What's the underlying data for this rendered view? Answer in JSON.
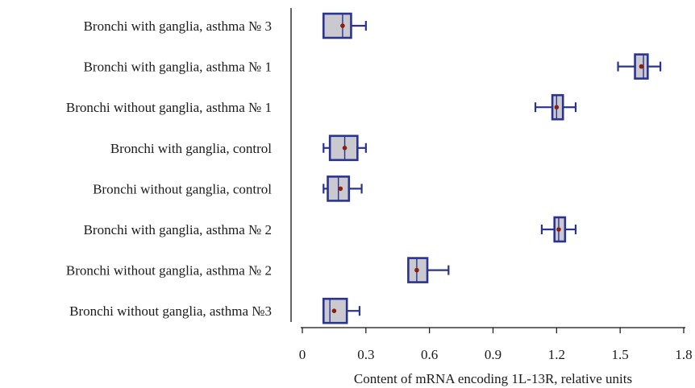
{
  "chart_data": {
    "type": "boxplot",
    "orientation": "horizontal",
    "title": "",
    "xlabel": "Content of mRNA encoding 1L-13R, relative units",
    "ylabel": "",
    "xlim": [
      0,
      1.8
    ],
    "xticks": [
      "0",
      "0.3",
      "0.6",
      "0.9",
      "1.2",
      "1.5",
      "1.8"
    ],
    "grid": false,
    "categories": [
      "Bronchi with ganglia, asthma № 3",
      "Bronchi with ganglia, asthma № 1",
      "Bronchi without ganglia, asthma № 1",
      "Bronchi with ganglia, control",
      "Bronchi without ganglia, control",
      "Bronchi with ganglia, asthma № 2",
      "Bronchi without ganglia, asthma № 2",
      "Bronchi without ganglia, asthma №3"
    ],
    "boxes": [
      {
        "min": 0.1,
        "q1": 0.1,
        "median": 0.19,
        "mean": 0.19,
        "q3": 0.23,
        "max": 0.3
      },
      {
        "min": 1.49,
        "q1": 1.57,
        "median": 1.61,
        "mean": 1.6,
        "q3": 1.63,
        "max": 1.69
      },
      {
        "min": 1.1,
        "q1": 1.18,
        "median": 1.2,
        "mean": 1.2,
        "q3": 1.23,
        "max": 1.29
      },
      {
        "min": 0.1,
        "q1": 0.13,
        "median": 0.2,
        "mean": 0.2,
        "q3": 0.26,
        "max": 0.3
      },
      {
        "min": 0.1,
        "q1": 0.12,
        "median": 0.17,
        "mean": 0.18,
        "q3": 0.22,
        "max": 0.28
      },
      {
        "min": 1.13,
        "q1": 1.19,
        "median": 1.21,
        "mean": 1.21,
        "q3": 1.24,
        "max": 1.29
      },
      {
        "min": 0.5,
        "q1": 0.5,
        "median": 0.54,
        "mean": 0.54,
        "q3": 0.59,
        "max": 0.69
      },
      {
        "min": 0.1,
        "q1": 0.1,
        "median": 0.13,
        "mean": 0.15,
        "q3": 0.21,
        "max": 0.27
      }
    ],
    "colors": {
      "box_fill": "#c9c9cf",
      "box_stroke": "#2b3390",
      "whisker": "#2b3390",
      "mean_marker": "#8a1f0f",
      "axis": "#111111"
    }
  }
}
